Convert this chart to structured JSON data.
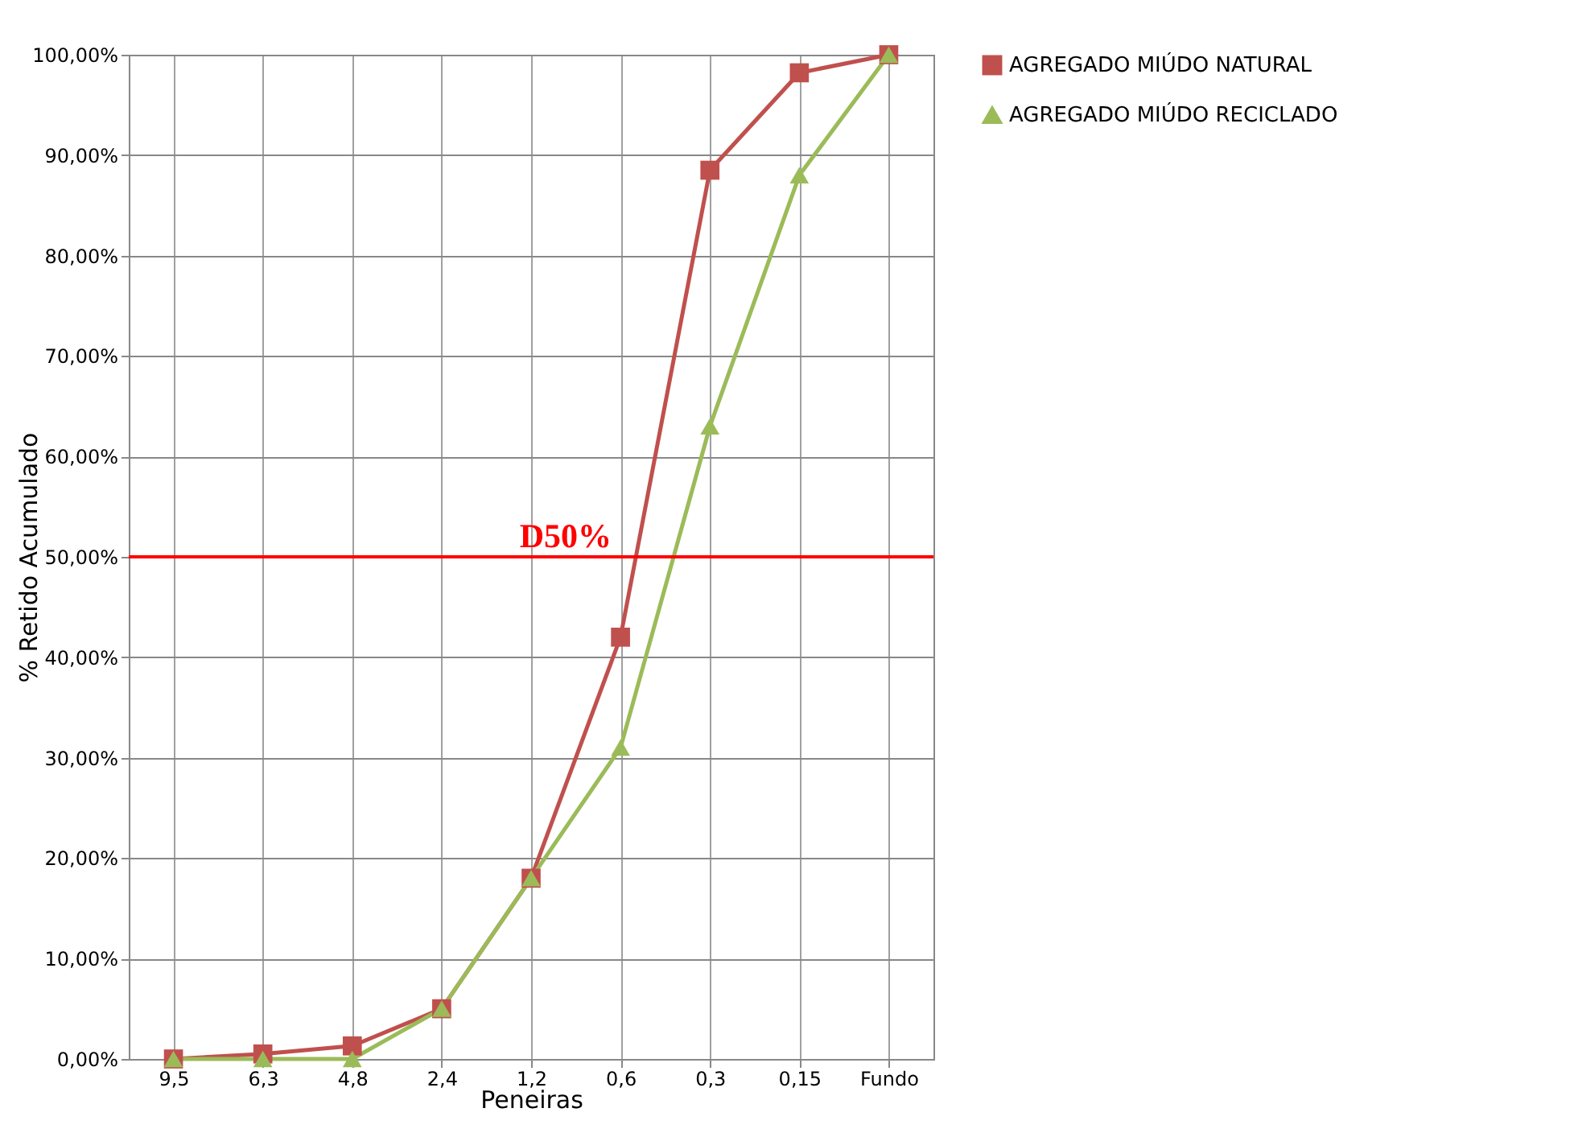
{
  "chart_data": {
    "type": "line",
    "xlabel": "Peneiras",
    "ylabel": "% Retido Acumulado",
    "categories": [
      "9,5",
      "6,3",
      "4,8",
      "2,4",
      "1,2",
      "0,6",
      "0,3",
      "0,15",
      "Fundo"
    ],
    "series": [
      {
        "name": "AGREGADO MIÚDO NATURAL",
        "color": "#c0504d",
        "marker": "square",
        "values": [
          0,
          0.5,
          1.3,
          5,
          18,
          42,
          88.5,
          98.2,
          100
        ]
      },
      {
        "name": "AGREGADO MIÚDO RECICLADO",
        "color": "#9bbb59",
        "marker": "triangle",
        "values": [
          0,
          0,
          0,
          5,
          18,
          31,
          63,
          88,
          100
        ]
      }
    ],
    "ylim": [
      0,
      100
    ],
    "yticks": [
      {
        "value": 0,
        "label": "0,00%"
      },
      {
        "value": 10,
        "label": "10,00%"
      },
      {
        "value": 20,
        "label": "20,00%"
      },
      {
        "value": 30,
        "label": "30,00%"
      },
      {
        "value": 40,
        "label": "40,00%"
      },
      {
        "value": 50,
        "label": "50,00%"
      },
      {
        "value": 60,
        "label": "60,00%"
      },
      {
        "value": 70,
        "label": "70,00%"
      },
      {
        "value": 80,
        "label": "80,00%"
      },
      {
        "value": 90,
        "label": "90,00%"
      },
      {
        "value": 100,
        "label": "100,00%"
      }
    ],
    "ref_lines": [
      {
        "axis": "y",
        "value": 50,
        "label": "D50%",
        "color": "#ff0000"
      }
    ],
    "grid": true,
    "legend": "right",
    "line_style": "solid"
  }
}
